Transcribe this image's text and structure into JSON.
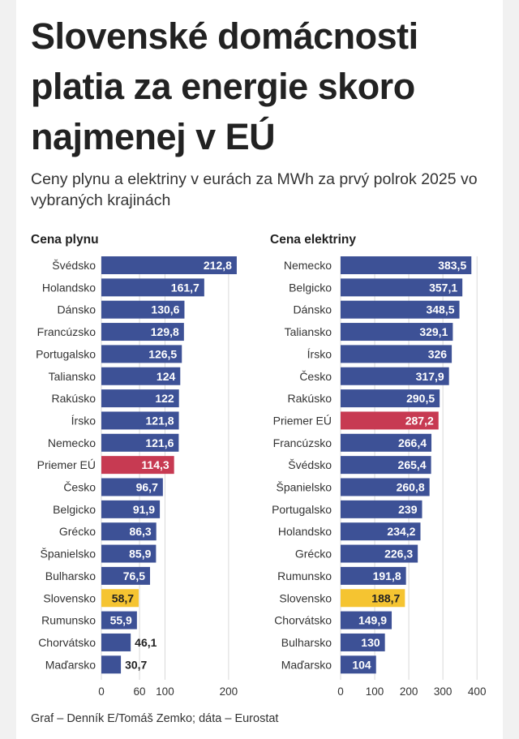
{
  "title": "Slovenské domácnosti platia za energie skoro najmenej v EÚ",
  "subtitle": "Ceny plynu a elektriny v eurách za MWh za prvý polrok 2025 vo vybraných krajinách",
  "footer": "Graf – Denník E/Tomáš Zemko; dáta – Eurostat",
  "colors": {
    "bar": "#3d5196",
    "highlight_eu": "#c73a52",
    "highlight_sk": "#f5c431",
    "grid": "#d9d9d9",
    "label_inside": "#ffffff",
    "label_outside": "#222222"
  },
  "chart_data": [
    {
      "type": "bar",
      "orientation": "horizontal",
      "title": "Cena plynu",
      "categories": [
        "Švédsko",
        "Holandsko",
        "Dánsko",
        "Francúzsko",
        "Portugalsko",
        "Taliansko",
        "Rakúsko",
        "Írsko",
        "Nemecko",
        "Priemer EÚ",
        "Česko",
        "Belgicko",
        "Grécko",
        "Španielsko",
        "Bulharsko",
        "Slovensko",
        "Rumunsko",
        "Chorvátsko",
        "Maďarsko"
      ],
      "values": [
        212.8,
        161.7,
        130.6,
        129.8,
        126.5,
        124,
        122,
        121.8,
        121.6,
        114.3,
        96.7,
        91.9,
        86.3,
        85.9,
        76.5,
        58.7,
        55.9,
        46.1,
        30.7
      ],
      "value_labels": [
        "212,8",
        "161,7",
        "130,6",
        "129,8",
        "126,5",
        "124",
        "122",
        "121,8",
        "121,6",
        "114,3",
        "96,7",
        "91,9",
        "86,3",
        "85,9",
        "76,5",
        "58,7",
        "55,9",
        "46,1",
        "30,7"
      ],
      "highlight": {
        "Priemer EÚ": "eu",
        "Slovensko": "sk"
      },
      "xlim": [
        0,
        220
      ],
      "xticks": [
        0,
        60,
        100,
        200
      ],
      "xtick_labels": [
        "0",
        "60",
        "100",
        "200"
      ],
      "grid": true
    },
    {
      "type": "bar",
      "orientation": "horizontal",
      "title": "Cena elektriny",
      "categories": [
        "Nemecko",
        "Belgicko",
        "Dánsko",
        "Taliansko",
        "Írsko",
        "Česko",
        "Rakúsko",
        "Priemer EÚ",
        "Francúzsko",
        "Švédsko",
        "Španielsko",
        "Portugalsko",
        "Holandsko",
        "Grécko",
        "Rumunsko",
        "Slovensko",
        "Chorvátsko",
        "Bulharsko",
        "Maďarsko"
      ],
      "values": [
        383.5,
        357.1,
        348.5,
        329.1,
        326,
        317.9,
        290.5,
        287.2,
        266.4,
        265.4,
        260.8,
        239,
        234.2,
        226.3,
        191.8,
        188.7,
        149.9,
        130,
        104
      ],
      "value_labels": [
        "383,5",
        "357,1",
        "348,5",
        "329,1",
        "326",
        "317,9",
        "290,5",
        "287,2",
        "266,4",
        "265,4",
        "260,8",
        "239",
        "234,2",
        "226,3",
        "191,8",
        "188,7",
        "149,9",
        "130",
        "104"
      ],
      "highlight": {
        "Priemer EÚ": "eu",
        "Slovensko": "sk"
      },
      "xlim": [
        0,
        400
      ],
      "xticks": [
        0,
        100,
        200,
        300,
        400
      ],
      "xtick_labels": [
        "0",
        "100",
        "200",
        "300",
        "400"
      ],
      "grid": true
    }
  ]
}
